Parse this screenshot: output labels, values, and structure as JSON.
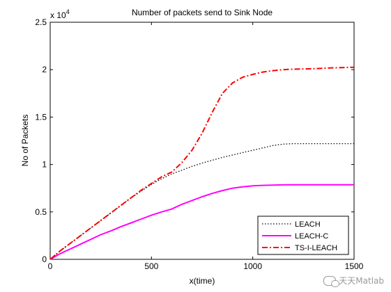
{
  "chart_data": {
    "type": "line",
    "title": "Number of packets send to Sink Node",
    "xlabel": "x(time)",
    "ylabel": "No of Packets",
    "xlim": [
      0,
      1500
    ],
    "ylim": [
      0,
      25000
    ],
    "x_ticks": [
      0,
      500,
      1000,
      1500
    ],
    "y_ticks": [
      0,
      5000,
      10000,
      15000,
      20000,
      25000
    ],
    "x_tick_labels": [
      "0",
      "500",
      "1000",
      "1500"
    ],
    "y_tick_labels": [
      "0",
      "0.5",
      "1",
      "1.5",
      "2",
      "2.5"
    ],
    "y_exponent_label": "x 10",
    "y_exponent_power": "4",
    "grid": false,
    "legend_position": "bottom-right",
    "series": [
      {
        "name": "LEACH",
        "color": "#000000",
        "style": "dotted",
        "points": [
          [
            0,
            0
          ],
          [
            50,
            900
          ],
          [
            100,
            1700
          ],
          [
            150,
            2500
          ],
          [
            200,
            3300
          ],
          [
            250,
            4100
          ],
          [
            300,
            4900
          ],
          [
            350,
            5700
          ],
          [
            400,
            6500
          ],
          [
            450,
            7200
          ],
          [
            500,
            7900
          ],
          [
            550,
            8500
          ],
          [
            600,
            9000
          ],
          [
            650,
            9400
          ],
          [
            700,
            9800
          ],
          [
            750,
            10150
          ],
          [
            800,
            10450
          ],
          [
            850,
            10750
          ],
          [
            900,
            11000
          ],
          [
            950,
            11250
          ],
          [
            1000,
            11500
          ],
          [
            1050,
            11750
          ],
          [
            1100,
            12000
          ],
          [
            1150,
            12150
          ],
          [
            1200,
            12200
          ],
          [
            1300,
            12200
          ],
          [
            1400,
            12200
          ],
          [
            1500,
            12200
          ]
        ]
      },
      {
        "name": "LEACH-C",
        "color": "#ff00ff",
        "style": "solid",
        "points": [
          [
            0,
            0
          ],
          [
            50,
            600
          ],
          [
            100,
            1100
          ],
          [
            150,
            1600
          ],
          [
            200,
            2100
          ],
          [
            250,
            2600
          ],
          [
            300,
            3000
          ],
          [
            350,
            3450
          ],
          [
            400,
            3850
          ],
          [
            450,
            4250
          ],
          [
            500,
            4650
          ],
          [
            550,
            5000
          ],
          [
            600,
            5300
          ],
          [
            650,
            5800
          ],
          [
            700,
            6200
          ],
          [
            750,
            6600
          ],
          [
            800,
            6950
          ],
          [
            850,
            7250
          ],
          [
            900,
            7500
          ],
          [
            950,
            7650
          ],
          [
            1000,
            7750
          ],
          [
            1050,
            7800
          ],
          [
            1100,
            7830
          ],
          [
            1150,
            7850
          ],
          [
            1200,
            7860
          ],
          [
            1300,
            7860
          ],
          [
            1400,
            7860
          ],
          [
            1500,
            7860
          ]
        ]
      },
      {
        "name": "TS-I-LEACH",
        "color": "#ff0000",
        "style": "dashdot",
        "points": [
          [
            0,
            0
          ],
          [
            50,
            900
          ],
          [
            100,
            1700
          ],
          [
            150,
            2500
          ],
          [
            200,
            3300
          ],
          [
            250,
            4100
          ],
          [
            300,
            4900
          ],
          [
            350,
            5700
          ],
          [
            400,
            6500
          ],
          [
            450,
            7300
          ],
          [
            500,
            8000
          ],
          [
            550,
            8700
          ],
          [
            600,
            9200
          ],
          [
            650,
            10200
          ],
          [
            700,
            11500
          ],
          [
            750,
            13300
          ],
          [
            800,
            15500
          ],
          [
            850,
            17500
          ],
          [
            900,
            18600
          ],
          [
            950,
            19200
          ],
          [
            1000,
            19500
          ],
          [
            1050,
            19750
          ],
          [
            1100,
            19900
          ],
          [
            1150,
            20000
          ],
          [
            1200,
            20050
          ],
          [
            1300,
            20100
          ],
          [
            1400,
            20200
          ],
          [
            1500,
            20250
          ]
        ]
      }
    ]
  },
  "watermark": {
    "text": "天天Matlab",
    "icon": "wechat-icon"
  }
}
